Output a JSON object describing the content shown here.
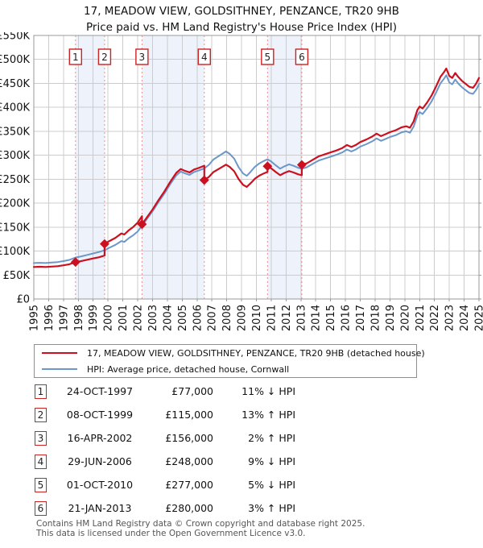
{
  "title": {
    "line1": "17, MEADOW VIEW, GOLDSITHNEY, PENZANCE, TR20 9HB",
    "line2": "Price paid vs. HM Land Registry's House Price Index (HPI)"
  },
  "colors": {
    "property_line": "#cc1020",
    "hpi_line": "#6d97c8",
    "sale_dashed_line": "#ee8a8a",
    "ownership_band": "#edf2fb",
    "grid": "#cccccc",
    "plot_border": "#999999",
    "marker_box_border": "#cc2222",
    "text": "#111111",
    "footer_text": "#555555"
  },
  "chart_data": {
    "type": "line",
    "title": "Price paid vs. HPI",
    "unit": "GBP thousands",
    "x_axis": {
      "min": 1995,
      "max": 2025,
      "tick_labels": [
        "1995",
        "1996",
        "1997",
        "1998",
        "1999",
        "2000",
        "2001",
        "2002",
        "2003",
        "2004",
        "2005",
        "2006",
        "2007",
        "2008",
        "2009",
        "2010",
        "2011",
        "2012",
        "2013",
        "2014",
        "2015",
        "2016",
        "2017",
        "2018",
        "2019",
        "2020",
        "2021",
        "2022",
        "2023",
        "2024",
        "2025"
      ]
    },
    "y_axis": {
      "min_k": 0,
      "max_k": 550,
      "step_k": 50,
      "tick_labels": [
        "£0",
        "£50K",
        "£100K",
        "£150K",
        "£200K",
        "£250K",
        "£300K",
        "£350K",
        "£400K",
        "£450K",
        "£500K",
        "£550K"
      ]
    },
    "grid": true,
    "legend_position": "below",
    "series": [
      {
        "name": "HPI: Average price, detached house, Cornwall",
        "color": "#6d97c8",
        "points": [
          [
            1995.0,
            75
          ],
          [
            1995.4,
            75.5
          ],
          [
            1995.8,
            75
          ],
          [
            1996.2,
            76
          ],
          [
            1996.6,
            77
          ],
          [
            1997.0,
            79
          ],
          [
            1997.4,
            81.5
          ],
          [
            1997.81,
            86.5
          ],
          [
            1998.2,
            89
          ],
          [
            1998.6,
            92
          ],
          [
            1999.0,
            95
          ],
          [
            1999.4,
            98
          ],
          [
            1999.77,
            101.8
          ],
          [
            2000.1,
            107
          ],
          [
            2000.5,
            113
          ],
          [
            2000.9,
            121
          ],
          [
            2001.1,
            119
          ],
          [
            2001.4,
            127
          ],
          [
            2001.7,
            133
          ],
          [
            2002.0,
            141
          ],
          [
            2002.29,
            152.9
          ],
          [
            2002.6,
            166
          ],
          [
            2003.0,
            183
          ],
          [
            2003.4,
            202
          ],
          [
            2003.8,
            220
          ],
          [
            2004.2,
            240
          ],
          [
            2004.6,
            258
          ],
          [
            2004.9,
            266
          ],
          [
            2005.2,
            262
          ],
          [
            2005.5,
            259
          ],
          [
            2005.8,
            265
          ],
          [
            2006.1,
            268
          ],
          [
            2006.49,
            272.5
          ],
          [
            2006.8,
            280
          ],
          [
            2007.1,
            291
          ],
          [
            2007.4,
            297
          ],
          [
            2007.7,
            303
          ],
          [
            2007.95,
            308
          ],
          [
            2008.2,
            303
          ],
          [
            2008.5,
            293
          ],
          [
            2008.8,
            275
          ],
          [
            2009.1,
            262
          ],
          [
            2009.35,
            257
          ],
          [
            2009.6,
            265
          ],
          [
            2009.9,
            276
          ],
          [
            2010.2,
            283
          ],
          [
            2010.5,
            288
          ],
          [
            2010.75,
            291.6
          ],
          [
            2011.0,
            287
          ],
          [
            2011.3,
            279
          ],
          [
            2011.6,
            272
          ],
          [
            2011.9,
            277
          ],
          [
            2012.2,
            281
          ],
          [
            2012.5,
            278
          ],
          [
            2012.8,
            274
          ],
          [
            2013.06,
            271.8
          ],
          [
            2013.4,
            275
          ],
          [
            2013.8,
            282
          ],
          [
            2014.2,
            289
          ],
          [
            2014.6,
            293
          ],
          [
            2015.0,
            297
          ],
          [
            2015.4,
            301
          ],
          [
            2015.8,
            306
          ],
          [
            2016.1,
            312
          ],
          [
            2016.4,
            308
          ],
          [
            2016.7,
            312
          ],
          [
            2017.0,
            318
          ],
          [
            2017.4,
            323
          ],
          [
            2017.8,
            329
          ],
          [
            2018.1,
            335
          ],
          [
            2018.4,
            330
          ],
          [
            2018.7,
            334
          ],
          [
            2019.0,
            338
          ],
          [
            2019.4,
            342
          ],
          [
            2019.8,
            348
          ],
          [
            2020.1,
            350
          ],
          [
            2020.35,
            347
          ],
          [
            2020.6,
            360
          ],
          [
            2020.85,
            383
          ],
          [
            2021.0,
            390
          ],
          [
            2021.2,
            386
          ],
          [
            2021.5,
            398
          ],
          [
            2021.8,
            412
          ],
          [
            2022.1,
            430
          ],
          [
            2022.4,
            450
          ],
          [
            2022.65,
            460
          ],
          [
            2022.8,
            467
          ],
          [
            2023.0,
            452
          ],
          [
            2023.2,
            448
          ],
          [
            2023.4,
            458
          ],
          [
            2023.6,
            450
          ],
          [
            2023.85,
            442
          ],
          [
            2024.1,
            436
          ],
          [
            2024.35,
            430
          ],
          [
            2024.6,
            428
          ],
          [
            2024.8,
            436
          ],
          [
            2025.0,
            448
          ]
        ]
      },
      {
        "name": "17, MEADOW VIEW, GOLDSITHNEY, PENZANCE, TR20 9HB (detached house)",
        "color": "#cc1020",
        "points": [
          [
            1995.0,
            66.8
          ],
          [
            1995.4,
            67.2
          ],
          [
            1995.8,
            66.8
          ],
          [
            1996.2,
            67.6
          ],
          [
            1996.6,
            68.5
          ],
          [
            1997.0,
            70.3
          ],
          [
            1997.4,
            72.5
          ],
          [
            1997.81,
            77.0
          ],
          [
            1998.2,
            79.2
          ],
          [
            1998.6,
            81.9
          ],
          [
            1999.0,
            84.6
          ],
          [
            1999.4,
            87.2
          ],
          [
            1999.77,
            90.6
          ],
          [
            1999.77,
            115.0
          ],
          [
            2000.1,
            120.9
          ],
          [
            2000.5,
            127.7
          ],
          [
            2000.9,
            136.7
          ],
          [
            2001.1,
            134.5
          ],
          [
            2001.4,
            143.5
          ],
          [
            2001.7,
            150.3
          ],
          [
            2002.0,
            159.3
          ],
          [
            2002.29,
            172.8
          ],
          [
            2002.29,
            156.0
          ],
          [
            2002.6,
            169.3
          ],
          [
            2003.0,
            186.7
          ],
          [
            2003.4,
            206.0
          ],
          [
            2003.8,
            224.4
          ],
          [
            2004.2,
            244.8
          ],
          [
            2004.6,
            263.2
          ],
          [
            2004.9,
            271.3
          ],
          [
            2005.2,
            267.2
          ],
          [
            2005.5,
            264.2
          ],
          [
            2005.8,
            270.3
          ],
          [
            2006.1,
            273.4
          ],
          [
            2006.49,
            278.0
          ],
          [
            2006.49,
            248.0
          ],
          [
            2006.8,
            254.8
          ],
          [
            2007.1,
            264.8
          ],
          [
            2007.4,
            270.3
          ],
          [
            2007.7,
            275.7
          ],
          [
            2007.95,
            280.3
          ],
          [
            2008.2,
            275.7
          ],
          [
            2008.5,
            266.6
          ],
          [
            2008.8,
            250.3
          ],
          [
            2009.1,
            238.4
          ],
          [
            2009.35,
            233.9
          ],
          [
            2009.6,
            241.2
          ],
          [
            2009.9,
            251.2
          ],
          [
            2010.2,
            257.5
          ],
          [
            2010.5,
            262.1
          ],
          [
            2010.75,
            265.4
          ],
          [
            2010.75,
            277.0
          ],
          [
            2011.0,
            272.7
          ],
          [
            2011.3,
            265.1
          ],
          [
            2011.6,
            258.4
          ],
          [
            2011.9,
            263.2
          ],
          [
            2012.2,
            267.0
          ],
          [
            2012.5,
            264.1
          ],
          [
            2012.8,
            260.3
          ],
          [
            2013.06,
            258.2
          ],
          [
            2013.06,
            280.0
          ],
          [
            2013.4,
            283.3
          ],
          [
            2013.8,
            290.5
          ],
          [
            2014.2,
            297.7
          ],
          [
            2014.6,
            301.8
          ],
          [
            2015.0,
            305.9
          ],
          [
            2015.4,
            310.0
          ],
          [
            2015.8,
            315.2
          ],
          [
            2016.1,
            321.4
          ],
          [
            2016.4,
            317.2
          ],
          [
            2016.7,
            321.4
          ],
          [
            2017.0,
            327.5
          ],
          [
            2017.4,
            332.7
          ],
          [
            2017.8,
            338.9
          ],
          [
            2018.1,
            345.1
          ],
          [
            2018.4,
            339.9
          ],
          [
            2018.7,
            344.0
          ],
          [
            2019.0,
            348.1
          ],
          [
            2019.4,
            352.3
          ],
          [
            2019.8,
            358.4
          ],
          [
            2020.1,
            360.5
          ],
          [
            2020.35,
            357.4
          ],
          [
            2020.6,
            370.8
          ],
          [
            2020.85,
            394.5
          ],
          [
            2021.0,
            401.7
          ],
          [
            2021.2,
            397.6
          ],
          [
            2021.5,
            409.9
          ],
          [
            2021.8,
            424.4
          ],
          [
            2022.1,
            442.9
          ],
          [
            2022.4,
            463.5
          ],
          [
            2022.65,
            473.8
          ],
          [
            2022.8,
            481.0
          ],
          [
            2023.0,
            465.6
          ],
          [
            2023.2,
            461.4
          ],
          [
            2023.4,
            471.7
          ],
          [
            2023.6,
            463.5
          ],
          [
            2023.85,
            455.3
          ],
          [
            2024.1,
            449.1
          ],
          [
            2024.35,
            442.9
          ],
          [
            2024.6,
            440.8
          ],
          [
            2024.8,
            449.1
          ],
          [
            2025.0,
            461.4
          ]
        ]
      }
    ],
    "sales": [
      {
        "n": "1",
        "year": 1997.81,
        "price_k": 77.0
      },
      {
        "n": "2",
        "year": 1999.77,
        "price_k": 115.0
      },
      {
        "n": "3",
        "year": 2002.29,
        "price_k": 156.0
      },
      {
        "n": "4",
        "year": 2006.49,
        "price_k": 248.0
      },
      {
        "n": "5",
        "year": 2010.75,
        "price_k": 277.0
      },
      {
        "n": "6",
        "year": 2013.06,
        "price_k": 280.0
      }
    ],
    "ownership_bands": [
      [
        1997.81,
        1999.77
      ],
      [
        2002.29,
        2006.49
      ],
      [
        2010.75,
        2013.06
      ]
    ]
  },
  "legend": {
    "items": [
      {
        "label": "17, MEADOW VIEW, GOLDSITHNEY, PENZANCE, TR20 9HB (detached house)",
        "color": "#cc1020"
      },
      {
        "label": "HPI: Average price, detached house, Cornwall",
        "color": "#6d97c8"
      }
    ]
  },
  "table": {
    "rows": [
      {
        "n": "1",
        "date": "24-OCT-1997",
        "price": "£77,000",
        "pct": "11% ↓ HPI"
      },
      {
        "n": "2",
        "date": "08-OCT-1999",
        "price": "£115,000",
        "pct": "13% ↑ HPI"
      },
      {
        "n": "3",
        "date": "16-APR-2002",
        "price": "£156,000",
        "pct": "2% ↑ HPI"
      },
      {
        "n": "4",
        "date": "29-JUN-2006",
        "price": "£248,000",
        "pct": "9% ↓ HPI"
      },
      {
        "n": "5",
        "date": "01-OCT-2010",
        "price": "£277,000",
        "pct": "5% ↓ HPI"
      },
      {
        "n": "6",
        "date": "21-JAN-2013",
        "price": "£280,000",
        "pct": "3% ↑ HPI"
      }
    ]
  },
  "footer": {
    "line1": "Contains HM Land Registry data © Crown copyright and database right 2025.",
    "line2": "This data is licensed under the Open Government Licence v3.0."
  }
}
